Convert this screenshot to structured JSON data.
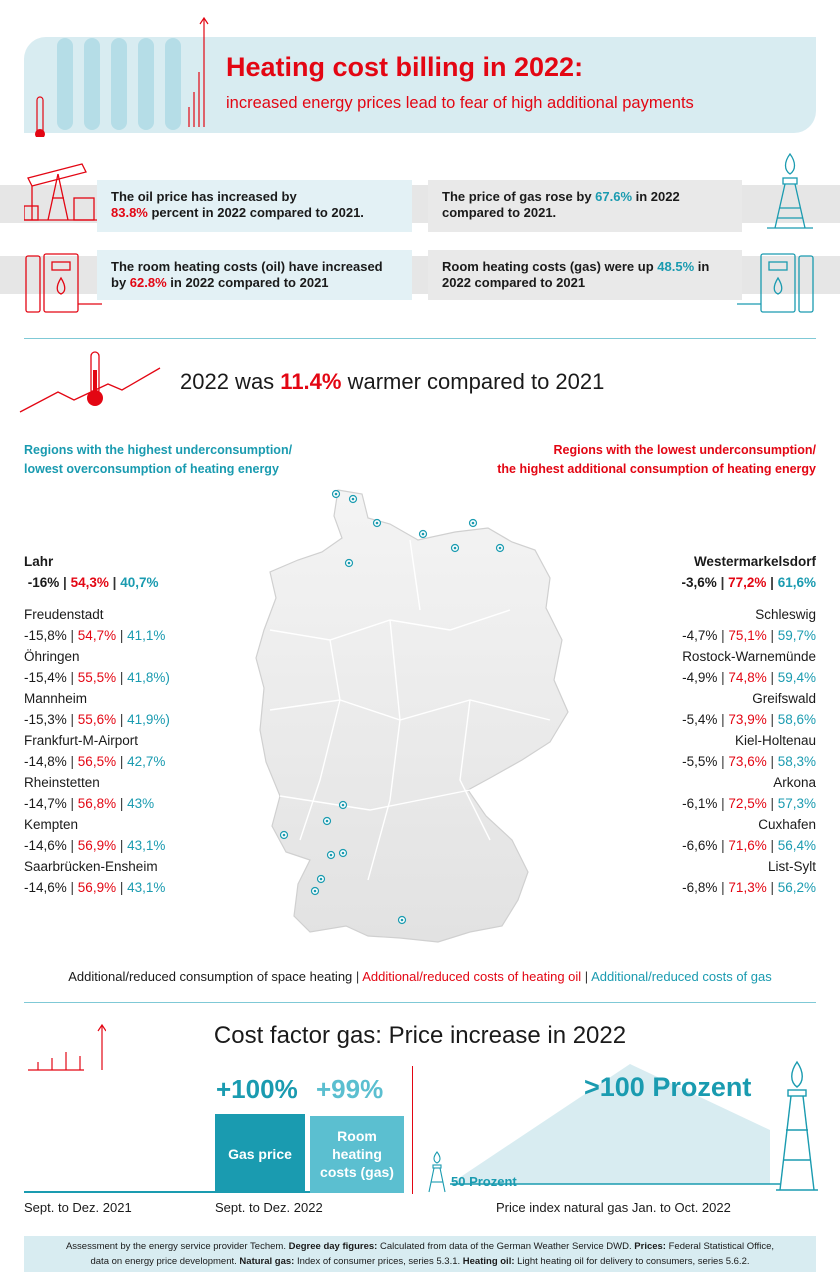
{
  "header": {
    "title": "Heating cost billing in 2022:",
    "subtitle": "increased energy prices lead to fear of high additional payments"
  },
  "facts": {
    "oil_price": {
      "pre": "The oil price has increased by",
      "value": "83.8%",
      "post": " percent in 2022 compared to 2021."
    },
    "gas_price": {
      "pre": "The price of gas rose by ",
      "value": "67.6%",
      "post": " in 2022 compared to 2021."
    },
    "room_oil": {
      "pre": "The room heating costs (oil) have increased by ",
      "value": "62.8%",
      "post": " in 2022 compared to 2021"
    },
    "room_gas": {
      "pre": "Room heating costs (gas) were up ",
      "value": "48.5%",
      "post": " in 2022 compared to 2021"
    }
  },
  "warmer": {
    "pre": "2022 was ",
    "value": "11.4%",
    "post": " warmer compared to 2021"
  },
  "regions_left": {
    "heading_line1": "Regions with the highest underconsumption/",
    "heading_line2": "lowest overconsumption of heating energy",
    "top": {
      "name": "Lahr",
      "v1": "-16%",
      "v2": "54,3%",
      "v3": "40,7%"
    },
    "items": [
      {
        "name": "Freudenstadt",
        "v1": "-15,8%",
        "v2": "54,7%",
        "v3": "41,1%"
      },
      {
        "name": "Öhringen",
        "v1": "-15,4%",
        "v2": "55,5%",
        "v3": "41,8%)"
      },
      {
        "name": "Mannheim",
        "v1": "-15,3%",
        "v2": "55,6%",
        "v3": "41,9%)"
      },
      {
        "name": "Frankfurt-M-Airport",
        "v1": "-14,8%",
        "v2": "56,5%",
        "v3": "42,7%"
      },
      {
        "name": "Rheinstetten",
        "v1": "-14,7%",
        "v2": "56,8%",
        "v3": "43%"
      },
      {
        "name": "Kempten",
        "v1": "-14,6%",
        "v2": "56,9%",
        "v3": "43,1%"
      },
      {
        "name": "Saarbrücken-Ensheim",
        "v1": "-14,6%",
        "v2": "56,9%",
        "v3": "43,1%"
      }
    ]
  },
  "regions_right": {
    "heading_line1": "Regions with the lowest underconsumption/",
    "heading_line2": "the highest additional consumption of heating energy",
    "top": {
      "name": "Westermarkelsdorf",
      "v1": "-3,6%",
      "v2": "77,2%",
      "v3": "61,6%"
    },
    "items": [
      {
        "name": "Schleswig",
        "v1": "-4,7%",
        "v2": "75,1%",
        "v3": "59,7%"
      },
      {
        "name": "Rostock-Warnemünde",
        "v1": "-4,9%",
        "v2": "74,8%",
        "v3": "59,4%"
      },
      {
        "name": "Greifswald",
        "v1": "-5,4%",
        "v2": "73,9%",
        "v3": "58,6%"
      },
      {
        "name": "Kiel-Holtenau",
        "v1": "-5,5%",
        "v2": "73,6%",
        "v3": "58,3%"
      },
      {
        "name": "Arkona",
        "v1": "-6,1%",
        "v2": "72,5%",
        "v3": "57,3%"
      },
      {
        "name": "Cuxhafen",
        "v1": "-6,6%",
        "v2": "71,6%",
        "v3": "56,4%"
      },
      {
        "name": "List-Sylt",
        "v1": "-6,8%",
        "v2": "71,3%",
        "v3": "56,2%"
      }
    ]
  },
  "legend": {
    "a": "Additional/reduced consumption of space heating",
    "b": "Additional/reduced costs of heating oil",
    "c": "Additional/reduced costs of gas"
  },
  "cost": {
    "title": "Cost factor gas: Price increase in 2022",
    "bar1_value": "+100%",
    "bar1_label": "Gas price",
    "bar2_value": "+99%",
    "bar2_label_1": "Room",
    "bar2_label_2": "heating",
    "bar2_label_3": "costs (gas)",
    "axis_left": "Sept. to Dez. 2021",
    "axis_mid": "Sept. to Dez. 2022",
    "index_big": ">100 Prozent",
    "index_small": "50 Prozent",
    "axis_right": "Price index natural gas Jan. to Oct. 2022"
  },
  "footer": {
    "line1_a": "Assessment by the energy service provider Techem. ",
    "line1_b": "Degree day figures:",
    "line1_c": " Calculated from data of the German Weather Service DWD. ",
    "line1_d": "Prices:",
    "line1_e": " Federal Statistical Office,",
    "line2_a": "data on energy price development. ",
    "line2_b": "Natural gas:",
    "line2_c": " Index of consumer prices, series 5.3.1. ",
    "line2_d": "Heating oil:",
    "line2_e": " Light heating oil for delivery to consumers, series 5.6.2."
  },
  "colors": {
    "red": "#e30613",
    "teal": "#1a9bb0",
    "light_blue": "#d8ecf1",
    "bar_dark": "#1a9bb0",
    "bar_light": "#5bbfd0"
  },
  "icons": [
    "thermometer-icon",
    "radiator-icon",
    "oil-pump-icon",
    "gas-derrick-icon",
    "oil-boiler-icon",
    "gas-boiler-icon",
    "germany-map-icon",
    "location-marker-icon"
  ]
}
